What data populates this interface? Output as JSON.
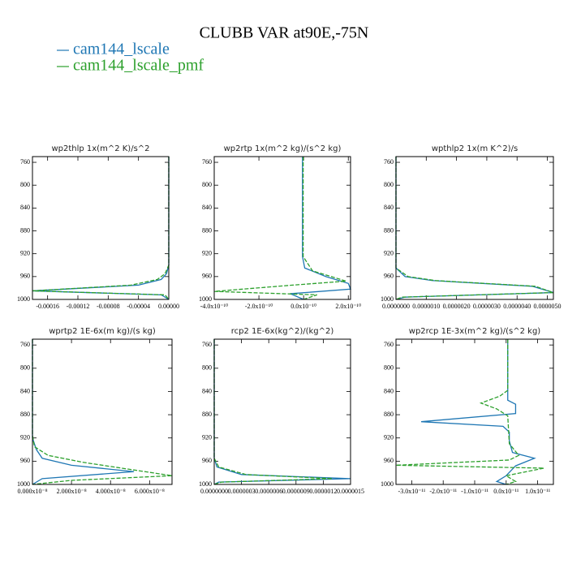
{
  "title": "CLUBB VAR at90E,-75N",
  "chart_data": [
    {
      "type": "line",
      "title": "wp2thlp   1x(m^2 K)/s^2",
      "xlim": [
        -0.00018,
        0
      ],
      "xticks": [
        -0.00016,
        -0.00012,
        -8e-05,
        -4e-05,
        {
          "value": 0,
          "label": "0.00000"
        }
      ],
      "ylim": [
        1000,
        750
      ],
      "yticks": [
        760,
        800,
        840,
        880,
        920,
        960,
        1000
      ],
      "series": [
        {
          "name": "cam144_lscale",
          "color": "#1f77b4",
          "y": [
            750,
            940,
            955,
            965,
            975,
            985,
            992,
            1000
          ],
          "values": [
            0,
            0,
            -3e-06,
            -1e-05,
            -4e-05,
            -0.00018,
            -1e-05,
            0
          ]
        },
        {
          "name": "cam144_lscale_pmf",
          "color": "#2ca02c",
          "y": [
            750,
            940,
            955,
            965,
            975,
            985,
            992,
            1000
          ],
          "values": [
            0,
            0,
            -5e-06,
            -1.5e-05,
            -5e-05,
            -0.00018,
            -5e-06,
            0
          ]
        }
      ]
    },
    {
      "type": "line",
      "title": "wp2rtp   1x(m^2 kg)/(s^2 kg)",
      "xlim": [
        -4e-10,
        2.1e-10
      ],
      "xticks": [
        {
          "value": -4e-10,
          "label": "-4.0x10⁻¹⁰"
        },
        {
          "value": -2e-10,
          "label": "-2.0x10⁻¹⁰"
        },
        {
          "value": 0,
          "label": "0.0x10⁻¹⁰"
        },
        {
          "value": 2e-10,
          "label": "2.0x10⁻¹⁰"
        }
      ],
      "ylim": [
        1000,
        750
      ],
      "yticks": [
        760,
        800,
        840,
        880,
        920,
        960,
        1000
      ],
      "series": [
        {
          "name": "cam144_lscale",
          "color": "#1f77b4",
          "y": [
            750,
            925,
            945,
            960,
            972,
            982,
            990,
            1000
          ],
          "values": [
            -5e-12,
            -5e-12,
            5e-12,
            1e-10,
            2e-10,
            2.1e-10,
            -6e-11,
            0
          ]
        },
        {
          "name": "cam144_lscale_pmf",
          "color": "#2ca02c",
          "y": [
            750,
            925,
            950,
            968,
            975,
            986,
            992,
            1000
          ],
          "values": [
            -2e-12,
            -2e-12,
            4e-11,
            1.9e-10,
            -5e-11,
            -4e-10,
            6e-11,
            0
          ]
        }
      ]
    },
    {
      "type": "line",
      "title": "wpthlp2   1x(m K^2)/s",
      "xlim": [
        0,
        5.2e-06
      ],
      "xticks": [
        {
          "value": 0,
          "label": "0.0000000"
        },
        {
          "value": 1e-06,
          "label": "0.0000010"
        },
        {
          "value": 2e-06,
          "label": "0.0000020"
        },
        {
          "value": 3e-06,
          "label": "0.0000030"
        },
        {
          "value": 4e-06,
          "label": "0.0000040"
        },
        {
          "value": 5e-06,
          "label": "0.0000050"
        }
      ],
      "ylim": [
        1000,
        750
      ],
      "yticks": [
        760,
        800,
        840,
        880,
        920,
        960,
        1000
      ],
      "series": [
        {
          "name": "cam144_lscale",
          "color": "#1f77b4",
          "y": [
            750,
            945,
            960,
            967,
            977,
            988,
            996,
            1000
          ],
          "values": [
            0,
            0,
            3e-07,
            1.2e-06,
            4.5e-06,
            5.2e-06,
            3e-07,
            0
          ]
        },
        {
          "name": "cam144_lscale_pmf",
          "color": "#2ca02c",
          "y": [
            750,
            945,
            960,
            967,
            977,
            988,
            996,
            1000
          ],
          "values": [
            0,
            0,
            4e-07,
            1.3e-06,
            4.6e-06,
            5.2e-06,
            2e-07,
            0
          ]
        }
      ]
    },
    {
      "type": "line",
      "title": "wprtp2   1E-6x(m kg)/(s kg)",
      "xlim": [
        0,
        7.15e-08
      ],
      "xticks": [
        {
          "value": 0,
          "label": "0.000x10⁻⁸"
        },
        {
          "value": 2e-08,
          "label": "2.000x10⁻⁸"
        },
        {
          "value": 4e-08,
          "label": "4.000x10⁻⁸"
        },
        {
          "value": 6e-08,
          "label": "6.000x10⁻⁸"
        }
      ],
      "ylim": [
        1000,
        750
      ],
      "yticks": [
        760,
        800,
        840,
        880,
        920,
        960,
        1000
      ],
      "series": [
        {
          "name": "cam144_lscale",
          "color": "#1f77b4",
          "y": [
            750,
            920,
            940,
            955,
            967,
            978,
            990,
            1000
          ],
          "values": [
            0,
            0,
            2e-09,
            5e-09,
            2e-08,
            5.2e-08,
            5e-09,
            0
          ]
        },
        {
          "name": "cam144_lscale_pmf",
          "color": "#2ca02c",
          "y": [
            750,
            915,
            935,
            950,
            962,
            985,
            993,
            1000
          ],
          "values": [
            0,
            0,
            1e-09,
            8e-09,
            2.6e-08,
            7.15e-08,
            2e-08,
            0
          ]
        }
      ]
    },
    {
      "type": "line",
      "title": "rcp2   1E-6x(kg^2)/(kg^2)",
      "xlim": [
        0,
        1.5e-06
      ],
      "xticks": [
        {
          "value": 0,
          "label": "0.0000000"
        },
        {
          "value": 3e-07,
          "label": "0.0000003"
        },
        {
          "value": 6e-07,
          "label": "0.0000006"
        },
        {
          "value": 9e-07,
          "label": "0.0000009"
        },
        {
          "value": 1.2e-06,
          "label": "0.0000012"
        },
        {
          "value": 1.5e-06,
          "label": "0.0000015"
        }
      ],
      "ylim": [
        1000,
        750
      ],
      "yticks": [
        760,
        800,
        840,
        880,
        920,
        960,
        1000
      ],
      "series": [
        {
          "name": "cam144_lscale",
          "color": "#1f77b4",
          "y": [
            750,
            955,
            970,
            983,
            990,
            996,
            1000
          ],
          "values": [
            0,
            0,
            3e-08,
            3e-07,
            1.5e-06,
            5e-08,
            0
          ]
        },
        {
          "name": "cam144_lscale_pmf",
          "color": "#2ca02c",
          "y": [
            750,
            955,
            970,
            983,
            990,
            996,
            1000
          ],
          "values": [
            0,
            0,
            5e-08,
            3.5e-07,
            1.3e-06,
            8e-08,
            0
          ]
        }
      ]
    },
    {
      "type": "line",
      "title": "wp2rcp   1E-3x(m^2 kg)/(s^2 kg)",
      "xlim": [
        -3.5e-11,
        1.5e-11
      ],
      "xticks": [
        {
          "value": -3e-11,
          "label": "-3.0x10⁻¹¹"
        },
        {
          "value": -2e-11,
          "label": "-2.0x10⁻¹¹"
        },
        {
          "value": -1e-11,
          "label": "-1.0x10⁻¹¹"
        },
        {
          "value": 0,
          "label": "0.0x10⁻¹¹"
        },
        {
          "value": 1e-11,
          "label": "1.0x10⁻¹¹"
        }
      ],
      "ylim": [
        1000,
        750
      ],
      "yticks": [
        760,
        800,
        840,
        880,
        920,
        960,
        1000
      ],
      "series": [
        {
          "name": "cam144_lscale",
          "color": "#1f77b4",
          "y": [
            750,
            855,
            862,
            878,
            892,
            900,
            910,
            925,
            945,
            955,
            968,
            985,
            995,
            1000
          ],
          "values": [
            5e-13,
            5e-13,
            3e-12,
            3e-12,
            -2.7e-11,
            -1e-12,
            1e-12,
            1e-12,
            2e-12,
            9e-12,
            3e-12,
            0,
            -3e-12,
            0
          ]
        },
        {
          "name": "cam144_lscale_pmf",
          "color": "#2ca02c",
          "y": [
            750,
            838,
            848,
            860,
            870,
            882,
            930,
            950,
            958,
            967,
            972,
            985,
            995,
            1000
          ],
          "values": [
            5e-13,
            5e-13,
            -2e-12,
            -8e-12,
            -3e-12,
            5e-13,
            1e-12,
            4e-12,
            1e-12,
            -3.5e-11,
            1.2e-11,
            0,
            3e-12,
            0
          ]
        }
      ]
    }
  ]
}
